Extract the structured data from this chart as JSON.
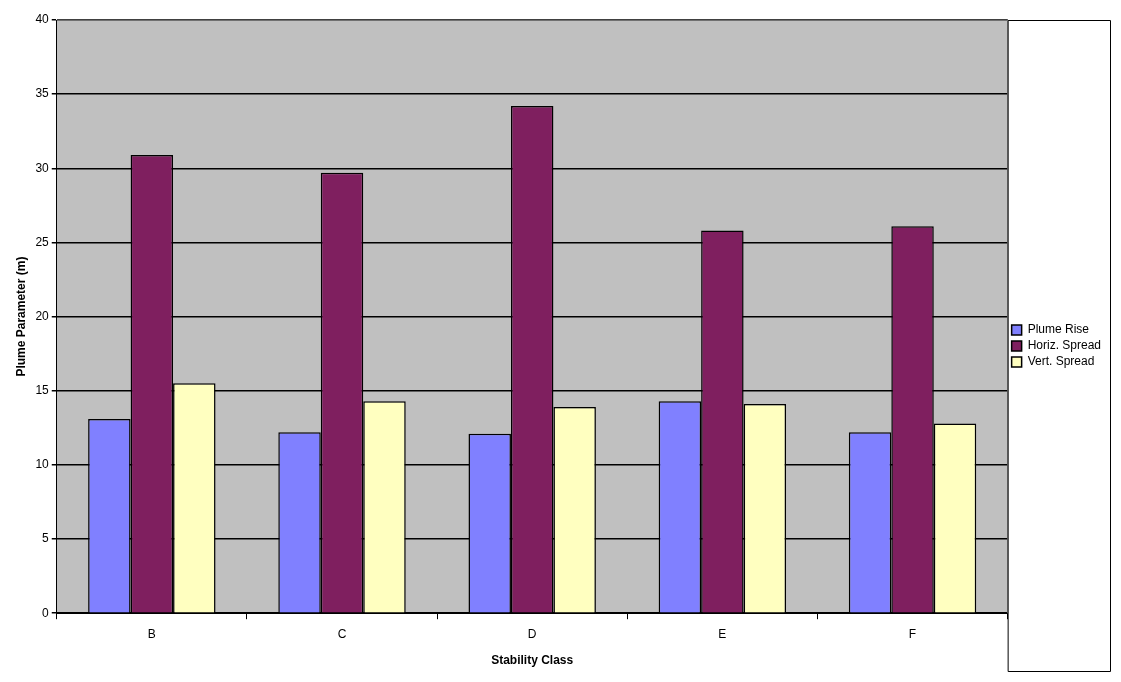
{
  "chart_data": {
    "type": "bar",
    "xlabel": "Stability Class",
    "ylabel": "Plume Parameter (m)",
    "categories": [
      "B",
      "C",
      "D",
      "E",
      "F"
    ],
    "series": [
      {
        "name": "Plume Rise",
        "color": "#8080ff",
        "values": [
          13.1,
          12.2,
          12.1,
          14.3,
          12.2
        ]
      },
      {
        "name": "Horiz. Spread",
        "color": "#7f1f5f",
        "values": [
          30.9,
          29.7,
          34.2,
          25.8,
          26.1
        ]
      },
      {
        "name": "Vert. Spread",
        "color": "#ffffc0",
        "values": [
          15.5,
          14.3,
          13.9,
          14.1,
          12.8
        ]
      }
    ],
    "ylim": [
      0,
      40
    ],
    "yticks": [
      0,
      5,
      10,
      15,
      20,
      25,
      30,
      35,
      40
    ],
    "grid": "y",
    "legend": "right"
  }
}
